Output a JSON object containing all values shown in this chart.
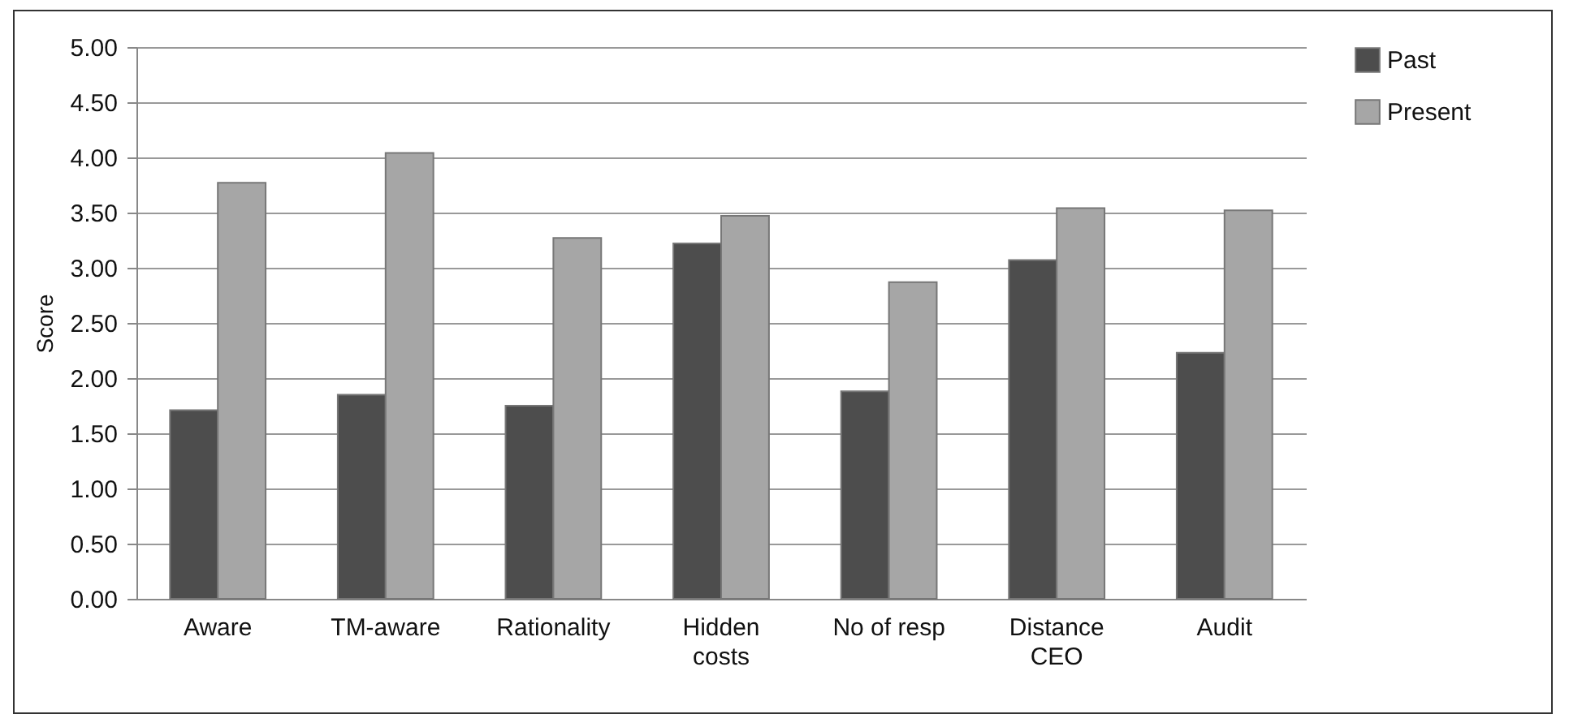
{
  "chart_data": {
    "type": "bar",
    "ylabel": "Score",
    "categories": [
      "Aware",
      "TM-aware",
      "Rationality",
      "Hidden costs",
      "No of resp",
      "Distance CEO",
      "Audit"
    ],
    "series": [
      {
        "name": "Past",
        "color": "#4d4d4d",
        "values": [
          1.71,
          1.85,
          1.75,
          3.22,
          1.88,
          3.07,
          2.23
        ]
      },
      {
        "name": "Present",
        "color": "#a6a6a6",
        "values": [
          3.77,
          4.04,
          3.27,
          3.47,
          2.87,
          3.54,
          3.52
        ]
      }
    ],
    "ylim": [
      0,
      5
    ],
    "yticks": [
      {
        "value": 0,
        "label": "0.00"
      },
      {
        "value": 0.5,
        "label": "0.50"
      },
      {
        "value": 1,
        "label": "1.00"
      },
      {
        "value": 1.5,
        "label": "1.50"
      },
      {
        "value": 2,
        "label": "2.00"
      },
      {
        "value": 2.5,
        "label": "2.50"
      },
      {
        "value": 3,
        "label": "3.00"
      },
      {
        "value": 3.5,
        "label": "3.50"
      },
      {
        "value": 4,
        "label": "4.00"
      },
      {
        "value": 4.5,
        "label": "4.50"
      },
      {
        "value": 5,
        "label": "5.00"
      }
    ],
    "grid": "y",
    "legend": "right"
  }
}
